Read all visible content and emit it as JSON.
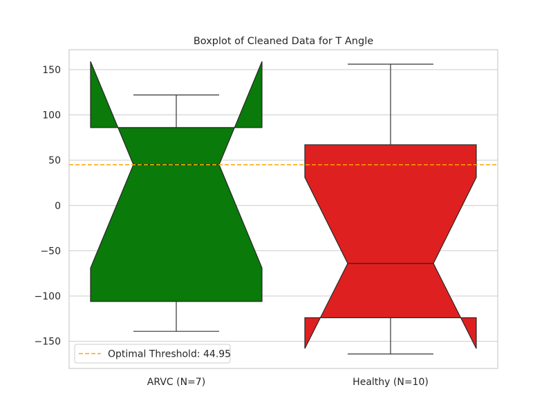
{
  "chart_data": {
    "type": "boxplot",
    "title": "Boxplot of Cleaned Data for T Angle",
    "xlabel": "",
    "ylabel": "",
    "ylim": [
      -180,
      172
    ],
    "yticks": [
      150,
      100,
      50,
      0,
      -50,
      -100,
      -150
    ],
    "ytick_labels": [
      "150",
      "100",
      "50",
      "0",
      "−50",
      "−100",
      "−150"
    ],
    "grid": true,
    "notched": true,
    "categories": [
      "ARVC (N=7)",
      "Healthy (N=10)"
    ],
    "boxes": [
      {
        "label": "ARVC (N=7)",
        "color": "#0a7a0a",
        "whisker_low": -139,
        "q1": -106,
        "notch_low": -69,
        "median": 45,
        "notch_high": 159,
        "q3": 86,
        "whisker_high": 122
      },
      {
        "label": "Healthy (N=10)",
        "color": "#df2020",
        "whisker_low": -164,
        "q1": -124,
        "notch_low": -158,
        "median": -64,
        "notch_high": 31,
        "q3": 67,
        "whisker_high": 156
      }
    ],
    "threshold": {
      "value": 44.95,
      "label": "Optimal Threshold: 44.95",
      "color": "#ffa500"
    },
    "legend_position": "lower-left"
  }
}
